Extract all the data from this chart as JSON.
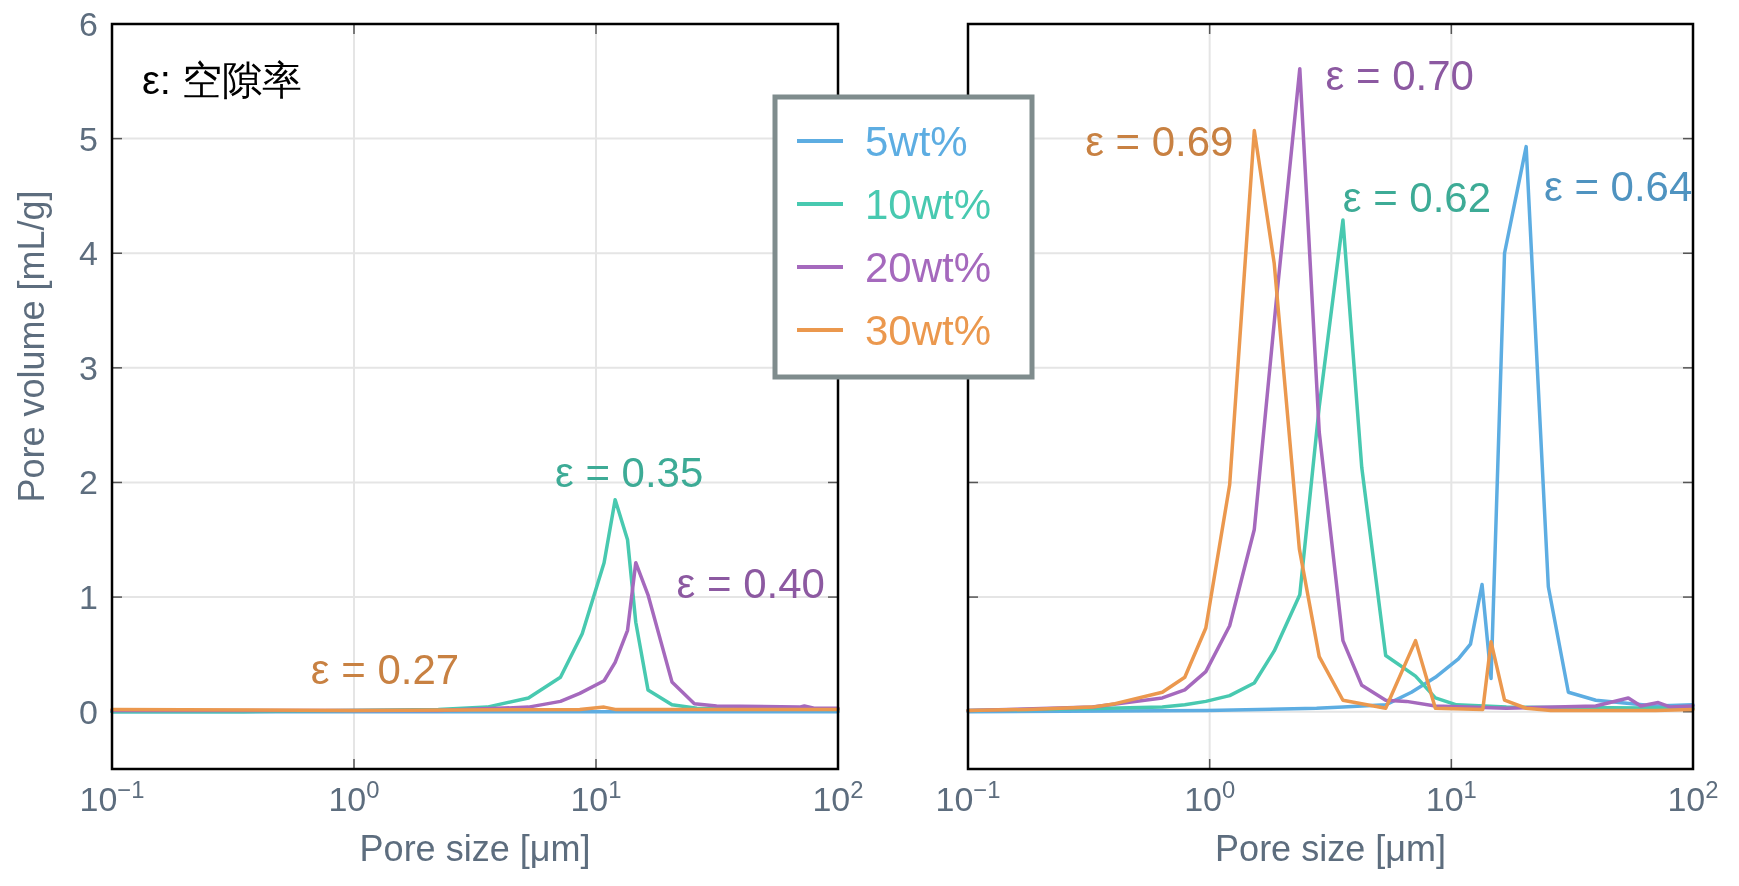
{
  "chart_data": [
    {
      "type": "line",
      "xlabel": "Pore size [μm]",
      "ylabel": "Pore volume [mL/g]",
      "log": "x",
      "grid": true,
      "legend": "top right",
      "xlim": [
        0.1,
        100
      ],
      "xticks": [
        {
          "value": 0.1,
          "label": "10$^{−1}$"
        },
        {
          "value": 1,
          "label": "10$^{0}$"
        },
        {
          "value": 10,
          "label": "10$^{1}$"
        },
        {
          "value": 100,
          "label": "10$^{2}$"
        }
      ],
      "ylim": [
        -0.5,
        6
      ],
      "yticks": [
        0,
        1,
        2,
        3,
        4,
        5,
        6
      ],
      "annotations": [
        "ε: 空隙率",
        {
          "text": "ε = 0.35",
          "x": 12.0,
          "y": 1.85
        },
        {
          "text": "ε = 0.40",
          "x": 14.6,
          "y": 1.3
        },
        {
          "text": "ε = 0.27",
          "x": 1.0,
          "y": 0.01
        }
      ],
      "series": [
        {
          "name": "5wt%",
          "color": "#5dade2",
          "x": [
            0.1,
            100
          ],
          "values": [
            0,
            0
          ]
        },
        {
          "name": "10wt%",
          "color": "#48c9b0",
          "x": [
            0.1,
            0.348,
            2.23,
            3.55,
            5.26,
            7.13,
            8.77,
            10.8,
            12.0,
            13.5,
            14.6,
            16.4,
            20.6,
            26.1,
            100
          ],
          "values": [
            0,
            0,
            0.02,
            0.04,
            0.12,
            0.3,
            0.68,
            1.3,
            1.85,
            1.5,
            0.78,
            0.19,
            0.06,
            0.03,
            0.02
          ]
        },
        {
          "name": "20wt%",
          "color": "#a569bd",
          "x": [
            0.1,
            2.23,
            5.26,
            7.13,
            8.57,
            10.8,
            12.0,
            13.5,
            14.6,
            16.4,
            20.6,
            25.5,
            31.5,
            69.3,
            72.6,
            79.6,
            100
          ],
          "values": [
            0.01,
            0.01,
            0.04,
            0.09,
            0.16,
            0.27,
            0.43,
            0.71,
            1.3,
            1.02,
            0.26,
            0.07,
            0.05,
            0.04,
            0.05,
            0.03,
            0.03
          ]
        },
        {
          "name": "30wt%",
          "color": "#eb984e",
          "x": [
            0.1,
            1.0,
            8.57,
            10.8,
            12.0,
            100
          ],
          "values": [
            0.02,
            0.01,
            0.02,
            0.04,
            0.02,
            0.02
          ]
        }
      ]
    },
    {
      "type": "line",
      "xlabel": "Pore size [μm]",
      "log": "x",
      "grid": true,
      "tick_labels": "x",
      "xlim": [
        0.1,
        100
      ],
      "xticks": [
        {
          "value": 0.1,
          "label": "10$^{−1}$"
        },
        {
          "value": 1,
          "label": "10$^{0}$"
        },
        {
          "value": 10,
          "label": "10$^{1}$"
        },
        {
          "value": 100,
          "label": "10$^{2}$"
        }
      ],
      "ylim": [
        -0.5,
        6
      ],
      "yticks": [
        0,
        1,
        2,
        3,
        4,
        5,
        6
      ],
      "annotations": [
        {
          "text": "ε = 0.70",
          "x": 2.36,
          "y": 5.61
        },
        {
          "text": "ε = 0.69",
          "x": 1.53,
          "y": 5.07
        },
        {
          "text": "ε = 0.62",
          "x": 3.56,
          "y": 4.29
        },
        {
          "text": "ε = 0.64",
          "x": 20.4,
          "y": 4.93
        }
      ],
      "series": [
        {
          "color": "#5dade2",
          "x": [
            0.1,
            0.977,
            2.77,
            3.56,
            5.35,
            6.84,
            8.59,
            10.7,
            12.0,
            13.4,
            14.6,
            16.6,
            20.4,
            25.2,
            30.5,
            39.6,
            70.0,
            100
          ],
          "values": [
            0.0,
            0.01,
            0.03,
            0.04,
            0.06,
            0.17,
            0.3,
            0.46,
            0.59,
            1.11,
            0.29,
            4.0,
            4.93,
            1.09,
            0.17,
            0.1,
            0.05,
            0.06
          ]
        },
        {
          "color": "#48c9b0",
          "x": [
            0.1,
            0.378,
            0.637,
            0.789,
            0.964,
            1.21,
            1.53,
            1.85,
            2.36,
            2.84,
            3.56,
            4.26,
            5.35,
            7.11,
            8.59,
            10.5,
            16.9,
            100
          ],
          "values": [
            0.01,
            0.03,
            0.04,
            0.06,
            0.09,
            0.14,
            0.25,
            0.53,
            1.02,
            2.66,
            4.29,
            2.13,
            0.49,
            0.31,
            0.12,
            0.06,
            0.04,
            0.03
          ]
        },
        {
          "color": "#a569bd",
          "x": [
            0.1,
            0.327,
            0.637,
            0.789,
            0.964,
            1.21,
            1.53,
            1.9,
            2.36,
            2.84,
            3.56,
            4.26,
            5.35,
            6.52,
            8.59,
            16.9,
            39.6,
            54.0,
            60.8,
            71.8,
            80.7,
            100
          ],
          "values": [
            0.01,
            0.04,
            0.12,
            0.19,
            0.35,
            0.75,
            1.59,
            3.65,
            5.61,
            2.44,
            0.62,
            0.23,
            0.1,
            0.09,
            0.05,
            0.03,
            0.05,
            0.12,
            0.05,
            0.08,
            0.04,
            0.05
          ]
        },
        {
          "color": "#eb984e",
          "x": [
            0.1,
            0.177,
            0.327,
            0.406,
            0.637,
            0.789,
            0.964,
            1.21,
            1.53,
            1.85,
            2.35,
            2.84,
            3.56,
            5.35,
            7.11,
            8.59,
            13.5,
            14.6,
            16.6,
            20.4,
            25.8,
            70.0,
            100
          ],
          "values": [
            0.01,
            0.02,
            0.04,
            0.07,
            0.17,
            0.3,
            0.73,
            1.98,
            5.07,
            3.91,
            1.42,
            0.48,
            0.1,
            0.03,
            0.62,
            0.03,
            0.02,
            0.61,
            0.1,
            0.03,
            0.01,
            0.01,
            0.02
          ]
        }
      ]
    }
  ]
}
